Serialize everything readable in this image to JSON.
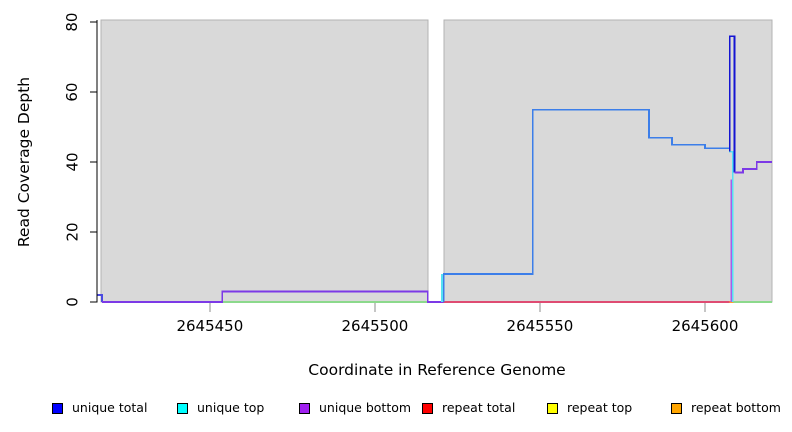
{
  "chart_data": {
    "type": "line",
    "subtype": "step-coverage",
    "title": "",
    "xlabel": "Coordinate in Reference Genome",
    "ylabel": "Read Coverage Depth",
    "xlim": [
      2645415.8,
      2645620.3
    ],
    "ylim": [
      0,
      80.6
    ],
    "grid": false,
    "x_ticks": [
      {
        "value": 2645450,
        "label": "2645450"
      },
      {
        "value": 2645500,
        "label": "2645500"
      },
      {
        "value": 2645550,
        "label": "2645550"
      },
      {
        "value": 2645600,
        "label": "2645600"
      }
    ],
    "y_ticks": [
      {
        "value": 0,
        "label": "0"
      },
      {
        "value": 20,
        "label": "20"
      },
      {
        "value": 40,
        "label": "40"
      },
      {
        "value": 60,
        "label": "60"
      },
      {
        "value": 80,
        "label": "80"
      }
    ],
    "background_regions": [
      {
        "name": "shaded-region-left",
        "x0": 2645417.0,
        "x1": 2645516.0,
        "fill": "#d9d9d9",
        "stroke": "#b3b3b3"
      },
      {
        "name": "shaded-region-right",
        "x0": 2645521.0,
        "x1": 2645620.3,
        "fill": "#d9d9d9",
        "stroke": "#b3b3b3"
      }
    ],
    "series": [
      {
        "name": "zero-line-green-left",
        "legend": "unique top + repeat top overlap at 0",
        "color": "#8cd98c",
        "points": [
          [
            2645453.7,
            0
          ],
          [
            2645516.0,
            0
          ]
        ]
      },
      {
        "name": "zero-line-red",
        "legend": "repeat total at 0",
        "color": "#df4b72",
        "points": [
          [
            2645520.8,
            0
          ],
          [
            2645607.6,
            0
          ]
        ]
      },
      {
        "name": "zero-line-orange",
        "legend": "repeat bottom at 0",
        "color": "#ff9d2e",
        "points": [
          [
            2645607.4,
            0
          ],
          [
            2645608.6,
            0
          ]
        ]
      },
      {
        "name": "zero-line-green-right",
        "legend": "unique top + repeat top overlap at 0",
        "color": "#8cd98c",
        "points": [
          [
            2645608.6,
            0
          ],
          [
            2645620.3,
            0
          ]
        ]
      },
      {
        "name": "unique-left-edge-step",
        "legend": "unique total",
        "color": "#4b4be0",
        "points": [
          [
            2645415.8,
            2
          ],
          [
            2645417.3,
            2
          ],
          [
            2645417.3,
            0
          ]
        ]
      },
      {
        "name": "unique-bottom-left",
        "legend": "unique bottom",
        "color": "#7c39e6",
        "points": [
          [
            2645417.3,
            0
          ],
          [
            2645453.7,
            0
          ],
          [
            2645453.7,
            3
          ],
          [
            2645516.0,
            3
          ],
          [
            2645516.0,
            0
          ],
          [
            2645520.8,
            0
          ]
        ]
      },
      {
        "name": "unique-top-gap-rise",
        "legend": "unique top",
        "color": "#55e2f2",
        "points": [
          [
            2645520.3,
            0
          ],
          [
            2645520.3,
            8
          ]
        ]
      },
      {
        "name": "unique-total-main",
        "legend": "unique total",
        "color": "#3c7ee9",
        "points": [
          [
            2645520.8,
            0
          ],
          [
            2645520.8,
            8
          ],
          [
            2645547.8,
            8
          ],
          [
            2645547.8,
            55
          ],
          [
            2645583.0,
            55
          ],
          [
            2645583.0,
            47
          ],
          [
            2645590.0,
            47
          ],
          [
            2645590.0,
            45
          ],
          [
            2645600.0,
            45
          ],
          [
            2645600.0,
            44
          ],
          [
            2645607.3,
            44
          ]
        ]
      },
      {
        "name": "unique-top-dip",
        "legend": "unique top",
        "color": "#55e2f2",
        "points": [
          [
            2645607.3,
            43
          ],
          [
            2645608.4,
            43
          ],
          [
            2645608.4,
            0
          ]
        ]
      },
      {
        "name": "unique-bottom-vertical",
        "legend": "unique bottom",
        "color": "#a95ce8",
        "points": [
          [
            2645607.9,
            35
          ],
          [
            2645607.9,
            0
          ]
        ]
      },
      {
        "name": "unique-total-spike",
        "legend": "unique total",
        "color": "#1414d2",
        "points": [
          [
            2645607.5,
            43
          ],
          [
            2645607.5,
            76
          ],
          [
            2645608.9,
            76
          ],
          [
            2645608.9,
            37
          ]
        ]
      },
      {
        "name": "unique-bottom-right",
        "legend": "unique bottom",
        "color": "#7c39e6",
        "points": [
          [
            2645608.9,
            37
          ],
          [
            2645611.5,
            37
          ],
          [
            2645611.5,
            38
          ],
          [
            2645615.7,
            38
          ],
          [
            2645615.7,
            40
          ],
          [
            2645620.3,
            40
          ]
        ]
      }
    ],
    "legend": {
      "position": "bottom",
      "items": [
        {
          "label": "unique total",
          "color": "#0000ff"
        },
        {
          "label": "unique top",
          "color": "#00ffff"
        },
        {
          "label": "unique bottom",
          "color": "#a020f0"
        },
        {
          "label": "repeat total",
          "color": "#ff0000"
        },
        {
          "label": "repeat top",
          "color": "#ffff00"
        },
        {
          "label": "repeat bottom",
          "color": "#ffa500"
        }
      ]
    },
    "axis_colors": {
      "y_axis": "#000000",
      "x_ticks": "#8c8c8c",
      "tick_labels": "#000000"
    }
  }
}
